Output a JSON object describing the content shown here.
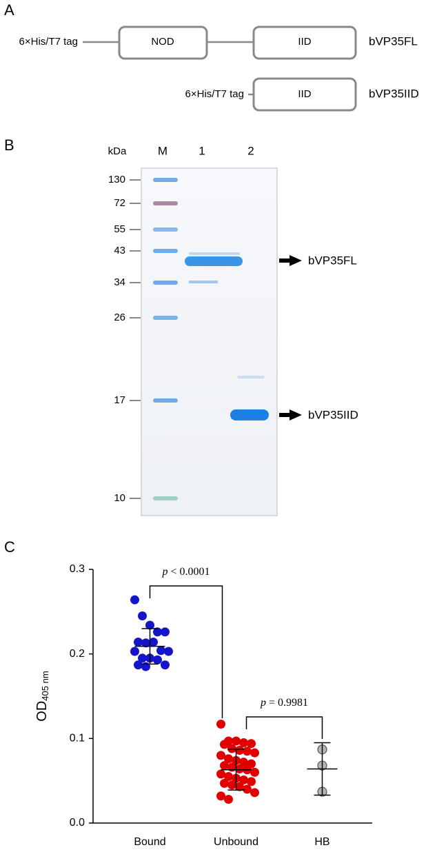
{
  "panel_a": {
    "label": "A",
    "constructs": [
      {
        "tag": "6×His/T7 tag",
        "domains": [
          "NOD",
          "IID"
        ],
        "name": "bVP35FL"
      },
      {
        "tag": "6×His/T7 tag",
        "domains": [
          "IID"
        ],
        "name": "bVP35IID"
      }
    ]
  },
  "panel_b": {
    "label": "B",
    "unit": "kDa",
    "lanes": [
      "M",
      "1",
      "2"
    ],
    "markers": [
      "130",
      "72",
      "55",
      "43",
      "34",
      "26",
      "17",
      "10"
    ],
    "bands": [
      "bVP35FL",
      "bVP35IID"
    ]
  },
  "chart_data": {
    "type": "scatter",
    "label": "C",
    "y_label": "OD",
    "y_label_sub": "405 nm",
    "categories": [
      "Bound",
      "Unbound",
      "HB"
    ],
    "series": [
      {
        "color": "#1414c8",
        "values": [
          0.264,
          0.245,
          0.234,
          0.226,
          0.226,
          0.214,
          0.213,
          0.214,
          0.204,
          0.203,
          0.203,
          0.195,
          0.195,
          0.193,
          0.187,
          0.187,
          0.185
        ],
        "mean": 0.209,
        "sd": 0.021
      },
      {
        "color": "#e00000",
        "values": [
          0.117,
          0.097,
          0.097,
          0.095,
          0.094,
          0.093,
          0.088,
          0.086,
          0.085,
          0.083,
          0.08,
          0.076,
          0.074,
          0.072,
          0.07,
          0.068,
          0.066,
          0.064,
          0.063,
          0.06,
          0.058,
          0.055,
          0.053,
          0.051,
          0.049,
          0.047,
          0.045,
          0.043,
          0.04,
          0.036,
          0.032,
          0.028
        ],
        "mean": 0.063,
        "sd": 0.024
      },
      {
        "color": "#b4b4b4",
        "values": [
          0.087,
          0.068,
          0.037
        ],
        "mean": 0.064,
        "sd": 0.031
      }
    ],
    "ylim": [
      0,
      0.3
    ],
    "yticks": [
      {
        "value": 0,
        "label": "0.0"
      },
      {
        "value": 0.1,
        "label": "0.1"
      },
      {
        "value": 0.2,
        "label": "0.2"
      },
      {
        "value": 0.3,
        "label": "0.3"
      }
    ],
    "annotations": [
      {
        "symbol": "p",
        "text": "< 0.0001"
      },
      {
        "symbol": "p",
        "text": "= 0.9981"
      }
    ]
  }
}
